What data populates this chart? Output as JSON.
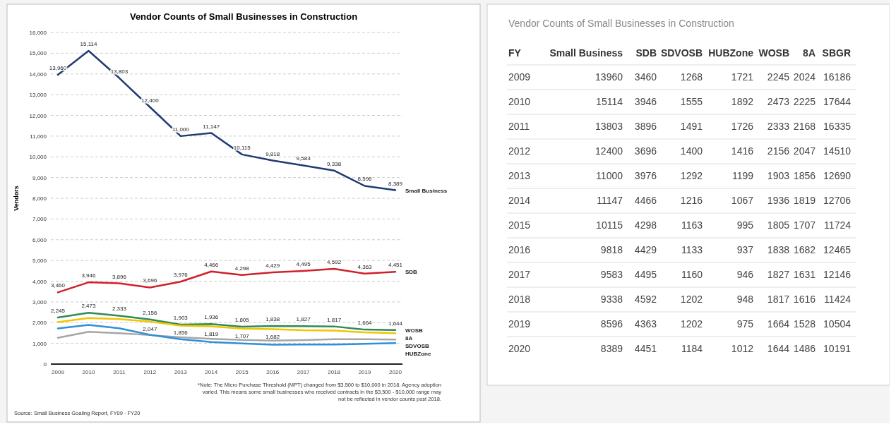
{
  "chart_data": [
    {
      "type": "line",
      "title": "Vendor Counts of Small Businesses in Construction",
      "ylabel": "Vendors",
      "categories": [
        "2009",
        "2010",
        "2011",
        "2012",
        "2013",
        "2014",
        "2015",
        "2016",
        "2017",
        "2018",
        "2019",
        "2020"
      ],
      "ylim": [
        0,
        16000
      ],
      "yticks": [
        {
          "value": 0,
          "label": "0"
        },
        {
          "value": 1000,
          "label": "1,000"
        },
        {
          "value": 2000,
          "label": "2,000"
        },
        {
          "value": 3000,
          "label": "3,000"
        },
        {
          "value": 4000,
          "label": "4,000"
        },
        {
          "value": 5000,
          "label": "5,000"
        },
        {
          "value": 6000,
          "label": "6,000"
        },
        {
          "value": 7000,
          "label": "7,000"
        },
        {
          "value": 8000,
          "label": "8,000"
        },
        {
          "value": 9000,
          "label": "9,000"
        },
        {
          "value": 10000,
          "label": "10,000"
        },
        {
          "value": 11000,
          "label": "11,000"
        },
        {
          "value": 12000,
          "label": "12,000"
        },
        {
          "value": 13000,
          "label": "13,000"
        },
        {
          "value": 14000,
          "label": "14,000"
        },
        {
          "value": 15000,
          "label": "15,000"
        },
        {
          "value": 16000,
          "label": "16,000"
        }
      ],
      "grid": "y",
      "line_style": "solid",
      "series": [
        {
          "name": "Small Business",
          "color": "#1f3b73",
          "values": [
            13960,
            15114,
            13803,
            12400,
            11000,
            11147,
            10115,
            9818,
            9583,
            9338,
            8596,
            8389
          ],
          "value_labels": [
            "13,960",
            "15,114",
            "13,803",
            "12,400",
            "11,000",
            "11,147",
            "10,115",
            "9,818",
            "9,583",
            "9,338",
            "8,596",
            "8,389"
          ]
        },
        {
          "name": "SDB",
          "color": "#d0202a",
          "values": [
            3460,
            3946,
            3896,
            3696,
            3976,
            4466,
            4298,
            4429,
            4495,
            4592,
            4363,
            4451
          ],
          "value_labels": [
            "3,460",
            "3,946",
            "3,896",
            "3,696",
            "3,976",
            "4,466",
            "4,298",
            "4,429",
            "4,495",
            "4,592",
            "4,363",
            "4,451"
          ]
        },
        {
          "name": "WOSB",
          "color": "#2e8b57",
          "values": [
            2245,
            2473,
            2333,
            2156,
            1903,
            1936,
            1805,
            1838,
            1827,
            1817,
            1664,
            1644
          ],
          "value_labels": [
            "2,245",
            "2,473",
            "2,333",
            "2,156",
            "1,903",
            "1,936",
            "1,805",
            "1,838",
            "1,827",
            "1,817",
            "1,664",
            "1,644"
          ]
        },
        {
          "name": "8A",
          "color": "#f2c500",
          "values": [
            2024,
            2225,
            2168,
            2047,
            1856,
            1819,
            1707,
            1682,
            1631,
            1616,
            1528,
            1486
          ],
          "value_labels": [
            null,
            null,
            null,
            "2,047",
            "1,856",
            "1,819",
            "1,707",
            "1,682",
            null,
            null,
            null,
            null
          ]
        },
        {
          "name": "SDVOSB",
          "color": "#a6a6a6",
          "values": [
            1268,
            1555,
            1491,
            1400,
            1292,
            1216,
            1163,
            1133,
            1160,
            1202,
            1202,
            1184
          ]
        },
        {
          "name": "HUBZone",
          "color": "#2f8fd8",
          "values": [
            1721,
            1892,
            1726,
            1416,
            1199,
            1067,
            995,
            937,
            946,
            948,
            975,
            1012
          ]
        }
      ],
      "annotations": [
        "*Note: The Micro Purchase Threshold (MPT) changed from $3,500 to $10,000 in 2018. Agency adoption varied. This means some small businesses who received contracts in the $3,500 - $10,000 range may not be reflected in vendor counts post 2018.",
        "Source: Small Business Goaling Report, FY09 - FY20"
      ]
    },
    {
      "type": "heatmap",
      "title": "Vendor Counts of Small Businesses in Construction",
      "ylabel": "FY",
      "categories": [
        "Small Business",
        "SDB",
        "SDVOSB",
        "HUBZone",
        "WOSB",
        "8A",
        "SBGR"
      ],
      "y_categories": [
        "2009",
        "2010",
        "2011",
        "2012",
        "2013",
        "2014",
        "2015",
        "2016",
        "2017",
        "2018",
        "2019",
        "2020"
      ],
      "data_labels": true,
      "cells": [
        [
          13960,
          3460,
          1268,
          1721,
          2245,
          2024,
          16186
        ],
        [
          15114,
          3946,
          1555,
          1892,
          2473,
          2225,
          17644
        ],
        [
          13803,
          3896,
          1491,
          1726,
          2333,
          2168,
          16335
        ],
        [
          12400,
          3696,
          1400,
          1416,
          2156,
          2047,
          14510
        ],
        [
          11000,
          3976,
          1292,
          1199,
          1903,
          1856,
          12690
        ],
        [
          11147,
          4466,
          1216,
          1067,
          1936,
          1819,
          12706
        ],
        [
          10115,
          4298,
          1163,
          995,
          1805,
          1707,
          11724
        ],
        [
          9818,
          4429,
          1133,
          937,
          1838,
          1682,
          12465
        ],
        [
          9583,
          4495,
          1160,
          946,
          1827,
          1631,
          12146
        ],
        [
          9338,
          4592,
          1202,
          948,
          1817,
          1616,
          11424
        ],
        [
          8596,
          4363,
          1202,
          975,
          1664,
          1528,
          10504
        ],
        [
          8389,
          4451,
          1184,
          1012,
          1644,
          1486,
          10191
        ]
      ]
    }
  ]
}
